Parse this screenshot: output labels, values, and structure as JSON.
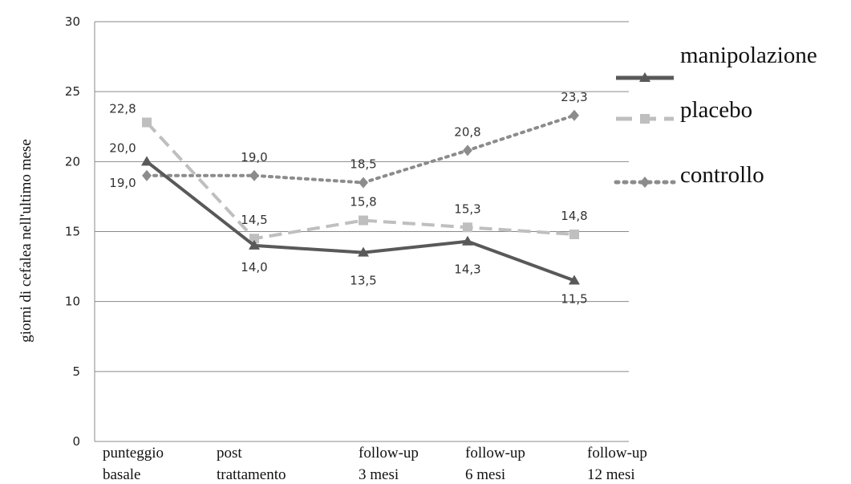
{
  "chart_data": {
    "type": "line",
    "ylabel": "giorni di cefalea nell'ultimo mese",
    "ylim": [
      0,
      30
    ],
    "yticks": [
      0,
      5,
      10,
      15,
      20,
      25,
      30
    ],
    "grid": "horizontal",
    "legend_position": "right",
    "categories": [
      [
        "punteggio",
        "basale"
      ],
      [
        "post",
        "trattamento"
      ],
      [
        "follow-up",
        "3 mesi"
      ],
      [
        "follow-up",
        "6 mesi"
      ],
      [
        "follow-up",
        "12  mesi"
      ]
    ],
    "series": [
      {
        "name": "manipolazione",
        "values": [
          20.0,
          14.0,
          13.5,
          14.3,
          11.5
        ],
        "labels": [
          "20,0",
          "14,0",
          "13,5",
          "14,3",
          "11,5"
        ],
        "color": "#595959",
        "style": "solid",
        "marker": "triangle"
      },
      {
        "name": "placebo",
        "values": [
          22.8,
          14.5,
          15.8,
          15.3,
          14.8
        ],
        "labels": [
          "22,8",
          "14,5",
          "15,8",
          "15,3",
          "14,8"
        ],
        "color": "#bfbfbf",
        "style": "dashed",
        "marker": "square"
      },
      {
        "name": "controllo",
        "values": [
          19.0,
          19.0,
          18.5,
          20.8,
          23.3
        ],
        "labels": [
          "19,0",
          "19,0",
          "18,5",
          "20,8",
          "23,3"
        ],
        "color": "#8c8c8c",
        "style": "dotted",
        "marker": "diamond"
      }
    ]
  }
}
